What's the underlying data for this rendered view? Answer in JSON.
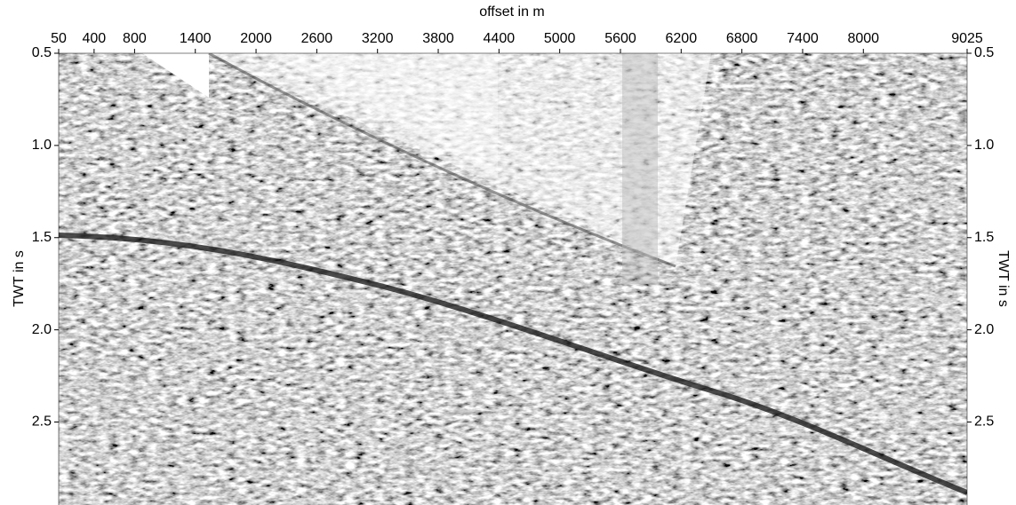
{
  "chart_data": {
    "type": "seismic-section",
    "x_label": "offset in m",
    "y_label": "TWT in s",
    "xlim": [
      50,
      9025
    ],
    "xticks": [
      50,
      400,
      800,
      1400,
      2000,
      2600,
      3200,
      3800,
      4400,
      5000,
      5600,
      6200,
      6800,
      7400,
      8000,
      9025
    ],
    "ylim": [
      0.5,
      2.95
    ],
    "yticks": [
      0.5,
      {
        "value": 1,
        "label": "1.0"
      },
      1.5,
      {
        "value": 2,
        "label": "2.0"
      },
      2.5
    ],
    "y_inverted": true,
    "x_axis_position": "top",
    "y_axis_both_sides": true
  }
}
